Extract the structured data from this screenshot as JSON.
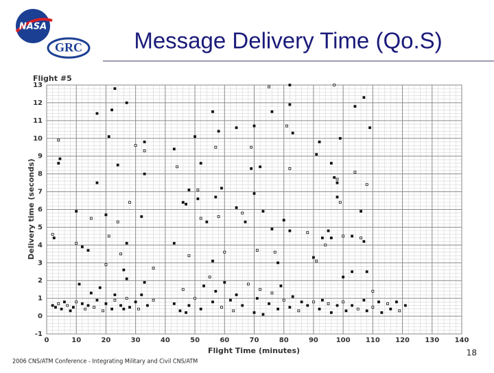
{
  "header": {
    "title": "Message Delivery Time (Qo.S)",
    "logos": [
      "NASA",
      "GRC"
    ]
  },
  "chart_data": {
    "type": "scatter",
    "title": "Flight #5",
    "x_label": "Flight Time (minutes)",
    "y_label": "Delivery time (seconds)",
    "x": [
      4,
      4,
      4.5,
      2,
      2.5,
      10,
      10,
      12,
      14,
      15,
      17,
      17,
      20,
      20,
      21,
      21,
      22,
      23,
      24,
      24,
      23,
      25,
      26,
      27,
      28,
      27,
      27,
      30,
      32,
      33,
      33,
      33,
      33,
      36,
      43,
      43,
      44,
      46,
      47,
      48,
      48,
      50,
      51,
      51,
      52,
      52,
      54,
      56,
      57,
      57,
      58,
      58,
      59,
      56,
      60,
      64,
      64,
      66,
      67,
      69,
      69,
      70,
      70,
      71,
      72,
      73,
      75,
      76,
      76,
      77,
      78,
      80,
      81,
      82,
      82,
      82,
      82,
      83,
      88,
      90,
      91,
      91,
      92,
      93,
      94,
      95,
      96,
      97,
      96,
      97,
      98,
      98,
      98,
      99,
      99,
      100,
      100,
      103,
      103,
      104,
      104,
      106,
      106,
      107,
      107,
      108,
      108,
      109,
      110,
      2,
      3,
      4,
      5,
      6,
      7,
      8,
      9,
      10,
      11,
      12,
      13,
      14,
      15,
      16,
      17,
      18,
      19,
      20,
      22,
      23,
      25,
      26,
      27,
      28,
      30,
      31,
      32,
      34,
      36,
      43,
      45,
      46,
      47,
      48,
      50,
      52,
      53,
      55,
      56,
      57,
      59,
      60,
      62,
      63,
      64,
      66,
      68,
      70,
      71,
      72,
      73,
      75,
      76,
      78,
      79,
      80,
      82,
      83,
      85,
      86,
      88,
      90,
      92,
      93,
      95,
      96,
      98,
      100,
      101,
      103,
      105,
      107,
      108,
      110,
      112,
      113,
      115,
      116,
      118,
      119,
      121
    ],
    "values": [
      9.9,
      8.6,
      8.85,
      4.6,
      4.4,
      5.9,
      4.1,
      3.9,
      3.7,
      5.5,
      7.5,
      11.4,
      2.9,
      5.7,
      10.1,
      4.5,
      11.6,
      1.2,
      5.3,
      8.5,
      12.8,
      3.5,
      2.6,
      12.0,
      6.4,
      4.1,
      2.1,
      9.6,
      5.6,
      9.8,
      9.3,
      8.0,
      1.9,
      2.7,
      9.4,
      4.1,
      8.4,
      6.4,
      6.3,
      3.4,
      7.1,
      10.1,
      7.1,
      6.6,
      8.6,
      5.5,
      5.3,
      11.5,
      9.5,
      6.7,
      10.4,
      5.6,
      7.2,
      3.1,
      3.6,
      6.1,
      10.6,
      5.8,
      5.3,
      8.3,
      9.5,
      10.7,
      6.9,
      3.7,
      8.4,
      5.9,
      12.9,
      4.9,
      11.5,
      3.6,
      3.0,
      5.4,
      10.7,
      13.0,
      11.9,
      8.3,
      4.8,
      10.3,
      4.7,
      3.3,
      9.1,
      3.1,
      9.8,
      4.4,
      4.0,
      4.8,
      4.4,
      13.0,
      8.6,
      7.8,
      7.7,
      7.5,
      6.7,
      6.4,
      10.0,
      2.2,
      4.5,
      4.5,
      2.5,
      8.1,
      11.8,
      5.9,
      4.4,
      12.3,
      4.2,
      7.4,
      2.5,
      10.6,
      1.4,
      0.6,
      0.5,
      0.7,
      0.4,
      0.8,
      0.6,
      0.3,
      0.5,
      0.8,
      1.8,
      0.7,
      0.4,
      0.6,
      1.3,
      0.5,
      0.9,
      1.6,
      0.3,
      0.7,
      0.4,
      0.9,
      0.6,
      0.4,
      1.0,
      0.5,
      0.8,
      0.4,
      1.2,
      0.6,
      0.9,
      0.7,
      0.3,
      1.5,
      0.2,
      0.6,
      1.0,
      0.4,
      1.7,
      2.2,
      0.8,
      1.4,
      0.5,
      1.9,
      0.9,
      0.3,
      1.2,
      0.6,
      1.8,
      0.2,
      1.0,
      1.5,
      0.1,
      0.7,
      1.3,
      0.4,
      1.7,
      0.9,
      0.5,
      1.1,
      0.3,
      0.8,
      0.6,
      0.8,
      0.4,
      0.9,
      0.7,
      0.2,
      0.6,
      0.8,
      0.3,
      0.6,
      0.4,
      0.9,
      0.3,
      0.5,
      0.8,
      0.2,
      0.7,
      0.4,
      0.8,
      0.3,
      0.6
    ],
    "color": "#111111",
    "xlim": [
      0,
      140
    ],
    "xticks": [
      0,
      10,
      20,
      30,
      40,
      50,
      60,
      70,
      80,
      90,
      100,
      110,
      120,
      130,
      140
    ],
    "ylim": [
      -1,
      13
    ],
    "yticks": [
      -1,
      0,
      1,
      2,
      3,
      4,
      5,
      6,
      7,
      8,
      9,
      10,
      11,
      12,
      13
    ],
    "grid": true
  },
  "footer": {
    "text": "2006 CNS/ATM Conference - Integrating Military and Civil CNS/ATM",
    "page": "18"
  }
}
